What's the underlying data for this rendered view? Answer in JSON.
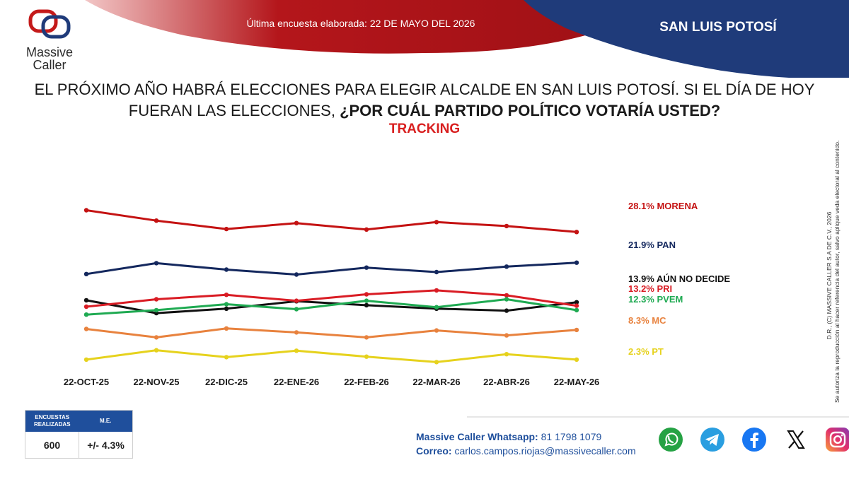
{
  "brand": {
    "name_line1": "Massive",
    "name_line2": "Caller"
  },
  "header": {
    "survey_date": "Última encuesta elaborada: 22 DE MAYO DEL 2026",
    "region": "SAN LUIS POTOSÍ"
  },
  "question": {
    "line1": "EL PRÓXIMO AÑO HABRÁ ELECCIONES PARA ELEGIR ALCALDE EN SAN LUIS POTOSÍ. SI EL DÍA DE HOY",
    "line2_normal": "FUERAN LAS ELECCIONES, ",
    "line2_bold": "¿POR CUÁL PARTIDO POLÍTICO VOTARÍA USTED?"
  },
  "subtitle": "TRACKING",
  "chart_data": {
    "type": "line",
    "title": "TRACKING",
    "xlabel": "",
    "ylabel": "",
    "grid": false,
    "legend": "right",
    "ylim": [
      0,
      40
    ],
    "categories": [
      "22-OCT-25",
      "22-NOV-25",
      "22-DIC-25",
      "22-ENE-26",
      "22-FEB-26",
      "22-MAR-26",
      "22-ABR-26",
      "22-MAY-26"
    ],
    "series": [
      {
        "name": "MORENA",
        "label": "28.1% MORENA",
        "color": "#c41212",
        "values": [
          32.5,
          30.4,
          28.7,
          29.9,
          28.6,
          30.1,
          29.3,
          28.1
        ]
      },
      {
        "name": "PAN",
        "label": "21.9% PAN",
        "color": "#14285e",
        "values": [
          19.6,
          21.8,
          20.5,
          19.5,
          20.9,
          20.0,
          21.1,
          21.9
        ]
      },
      {
        "name": "AÚN NO DECIDE",
        "label": "13.9% AÚN NO DECIDE",
        "color": "#111111",
        "values": [
          14.3,
          11.7,
          12.6,
          14.1,
          13.3,
          12.6,
          12.2,
          13.9
        ]
      },
      {
        "name": "PRI",
        "label": "13.2% PRI",
        "color": "#d91c24",
        "values": [
          13.0,
          14.5,
          15.4,
          14.2,
          15.5,
          16.3,
          15.3,
          13.2
        ]
      },
      {
        "name": "PVEM",
        "label": "12.3% PVEM",
        "color": "#1faa52",
        "values": [
          11.4,
          12.3,
          13.5,
          12.5,
          14.2,
          12.9,
          14.5,
          12.3
        ]
      },
      {
        "name": "MC",
        "label": "8.3% MC",
        "color": "#e8823e",
        "values": [
          8.5,
          6.8,
          8.6,
          7.8,
          6.8,
          8.2,
          7.2,
          8.3
        ]
      },
      {
        "name": "PT",
        "label": "2.3% PT",
        "color": "#e6d21d",
        "values": [
          2.3,
          4.2,
          2.8,
          4.1,
          2.9,
          1.8,
          3.4,
          2.3
        ]
      }
    ]
  },
  "side_note": {
    "line1": "D.R., (C) MASSIVE CALLER S.A DE C.V., 2026",
    "line2": "Se autoriza la reproducción al hacer referencia del autor, salvo aplique veda electoral al contenido."
  },
  "stats": {
    "col1_header": "ENCUESTAS REALIZADAS",
    "col2_header": "M.E.",
    "col1_value": "600",
    "col2_value": "+/- 4.3%"
  },
  "contact": {
    "whatsapp_label": "Massive Caller Whatsapp:",
    "whatsapp_value": "81 1798 1079",
    "email_label": "Correo:",
    "email_value": "carlos.campos.riojas@massivecaller.com"
  },
  "social_icons": [
    "whatsapp-icon",
    "telegram-icon",
    "facebook-icon",
    "x-icon",
    "instagram-icon"
  ],
  "colors": {
    "red_banner": "#b4161b",
    "navy_banner": "#1f3b7a",
    "accent_red": "#d81e1e",
    "table_header": "#1f4f9c"
  }
}
